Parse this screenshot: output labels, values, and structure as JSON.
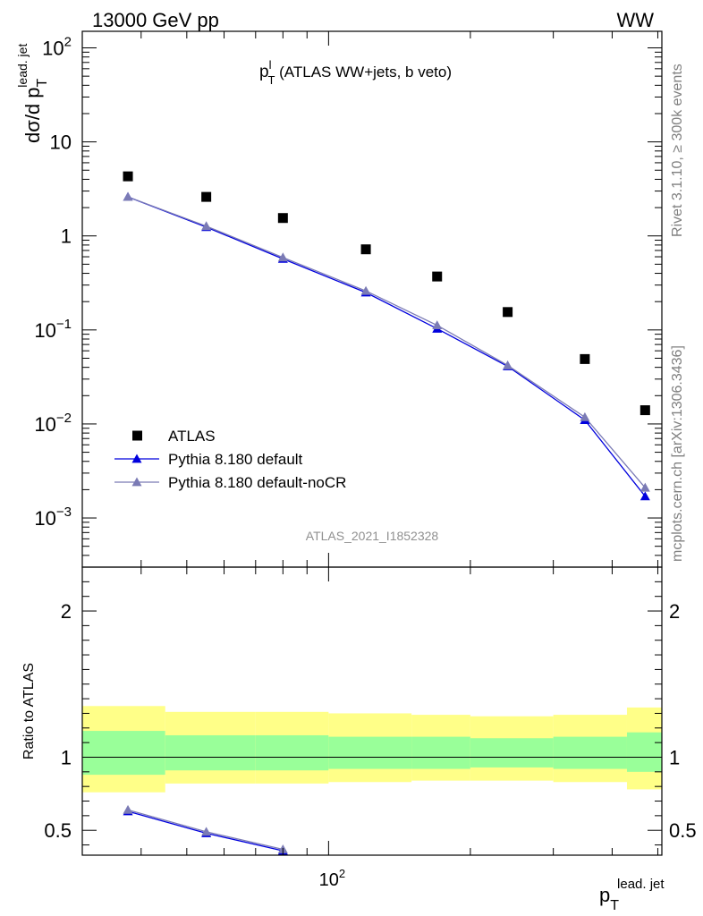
{
  "header": {
    "energy_label": "13000 GeV pp",
    "process_label": "WW",
    "analysis_tag": "ATLAS_2021_I1852328",
    "side_label_top": "Rivet 3.1.10, ≥ 300k events",
    "side_label_bottom": "mcplots.cern.ch [arXiv:1306.3436]"
  },
  "chart_data": [
    {
      "type": "scatter",
      "title_main": "p",
      "title_sup": "l",
      "title_sub": "T",
      "title_rest": " (ATLAS WW+jets, b veto)",
      "yscale": "log",
      "xscale": "log",
      "ylim": [
        0.0003,
        150
      ],
      "xlim": [
        30,
        510
      ],
      "ylabel_main": "dσ/d p",
      "ylabel_sub": "T",
      "ylabel_sup": "lead. jet",
      "yticks": [
        {
          "value": 0.001,
          "base": "10",
          "exp": "−3"
        },
        {
          "value": 0.01,
          "base": "10",
          "exp": "−2"
        },
        {
          "value": 0.1,
          "base": "10",
          "exp": "−1"
        },
        {
          "value": 1,
          "base": "1",
          "exp": ""
        },
        {
          "value": 10,
          "base": "10",
          "exp": ""
        },
        {
          "value": 100,
          "base": "10",
          "exp": "2"
        }
      ],
      "legend": {
        "position": "lower-left",
        "entries": [
          {
            "label": "ATLAS",
            "color": "#000000",
            "marker": "square"
          },
          {
            "label": "Pythia 8.180 default",
            "color": "#0000dd",
            "marker": "triangle"
          },
          {
            "label": "Pythia 8.180 default-noCR",
            "color": "#7b7bb5",
            "marker": "triangle"
          }
        ]
      },
      "x": [
        37.5,
        55,
        80,
        120,
        170,
        240,
        350,
        470
      ],
      "series": [
        {
          "name": "ATLAS",
          "color": "#000000",
          "marker": "square",
          "values": [
            4.3,
            2.6,
            1.55,
            0.72,
            0.37,
            0.155,
            0.049,
            0.014
          ]
        },
        {
          "name": "Pythia 8.180 default",
          "color": "#0000dd",
          "marker": "triangle",
          "values": [
            2.6,
            1.24,
            0.57,
            0.25,
            0.103,
            0.041,
            0.011,
            0.0017
          ]
        },
        {
          "name": "Pythia 8.180 default-noCR",
          "color": "#7b7bb5",
          "marker": "triangle",
          "values": [
            2.6,
            1.27,
            0.59,
            0.26,
            0.112,
            0.042,
            0.0118,
            0.0021
          ]
        }
      ]
    },
    {
      "type": "line",
      "ylabel": "Ratio to ATLAS",
      "xlabel_main": "p",
      "xlabel_sub": "T",
      "xlabel_sup": "lead. jet",
      "xtick_label": "10",
      "xtick_exp": "2",
      "xtick_value": 100,
      "ylim": [
        0.33,
        2.3
      ],
      "yticks": [
        0.5,
        1,
        2
      ],
      "ytick_labels": [
        "0.5",
        "1",
        "2"
      ],
      "bands": {
        "bins": [
          [
            30,
            45
          ],
          [
            45,
            70
          ],
          [
            70,
            100
          ],
          [
            100,
            150
          ],
          [
            150,
            200
          ],
          [
            200,
            300
          ],
          [
            300,
            430
          ],
          [
            430,
            510
          ]
        ],
        "yellow": [
          [
            0.76,
            1.35
          ],
          [
            0.82,
            1.31
          ],
          [
            0.82,
            1.31
          ],
          [
            0.83,
            1.3
          ],
          [
            0.84,
            1.29
          ],
          [
            0.84,
            1.28
          ],
          [
            0.83,
            1.29
          ],
          [
            0.78,
            1.34
          ]
        ],
        "green": [
          [
            0.88,
            1.18
          ],
          [
            0.91,
            1.15
          ],
          [
            0.91,
            1.15
          ],
          [
            0.92,
            1.14
          ],
          [
            0.92,
            1.14
          ],
          [
            0.93,
            1.13
          ],
          [
            0.92,
            1.14
          ],
          [
            0.9,
            1.17
          ]
        ],
        "yellow_color": "#ffff88",
        "green_color": "#99ff99"
      },
      "reference_value": 1,
      "series": [
        {
          "name": "Pythia 8.180 default",
          "color": "#0000dd",
          "x": [
            37.5,
            55,
            80
          ],
          "values": [
            0.63,
            0.48,
            0.36
          ]
        },
        {
          "name": "Pythia 8.180 default-noCR",
          "color": "#7b7bb5",
          "x": [
            37.5,
            55,
            80
          ],
          "values": [
            0.64,
            0.49,
            0.37
          ]
        }
      ]
    }
  ]
}
